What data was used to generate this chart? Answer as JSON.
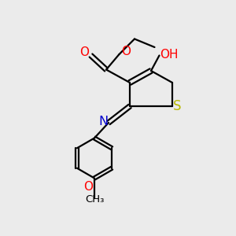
{
  "bg_color": "#ebebeb",
  "atom_colors": {
    "C": "#000000",
    "O": "#ff0000",
    "N": "#0000cd",
    "S": "#b8b800",
    "H": "#4a9a9a"
  },
  "bond_color": "#000000",
  "bond_width": 1.6,
  "figsize": [
    3.0,
    3.0
  ],
  "dpi": 100
}
